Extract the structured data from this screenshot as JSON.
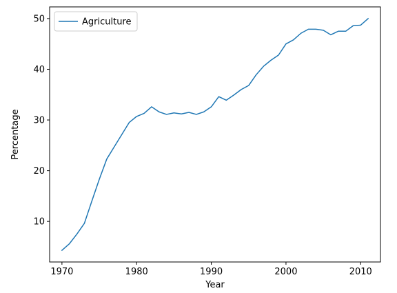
{
  "chart_data": {
    "type": "line",
    "title": "",
    "xlabel": "Year",
    "ylabel": "Percentage",
    "xlim": [
      1968.35,
      2012.65
    ],
    "ylim": [
      2.0,
      52.3
    ],
    "xticks": [
      1970,
      1980,
      1990,
      2000,
      2010
    ],
    "yticks": [
      10,
      20,
      30,
      40,
      50
    ],
    "grid": false,
    "legend_position": "upper left",
    "series": [
      {
        "name": "Agriculture",
        "color": "#1f77b4",
        "x": [
          1970,
          1971,
          1972,
          1973,
          1974,
          1975,
          1976,
          1977,
          1978,
          1979,
          1980,
          1981,
          1982,
          1983,
          1984,
          1985,
          1986,
          1987,
          1988,
          1989,
          1990,
          1991,
          1992,
          1993,
          1994,
          1995,
          1996,
          1997,
          1998,
          1999,
          2000,
          2001,
          2002,
          2003,
          2004,
          2005,
          2006,
          2007,
          2008,
          2009,
          2010,
          2011
        ],
        "y": [
          4.3,
          5.6,
          7.5,
          9.6,
          14.0,
          18.3,
          22.3,
          24.7,
          27.1,
          29.5,
          30.7,
          31.3,
          32.6,
          31.6,
          31.1,
          31.4,
          31.2,
          31.5,
          31.1,
          31.6,
          32.6,
          34.6,
          33.9,
          34.9,
          36.0,
          36.8,
          38.9,
          40.6,
          41.8,
          42.8,
          45.0,
          45.8,
          47.1,
          47.9,
          47.9,
          47.7,
          46.8,
          47.5,
          47.5,
          48.6,
          48.7,
          50.0
        ]
      }
    ]
  }
}
